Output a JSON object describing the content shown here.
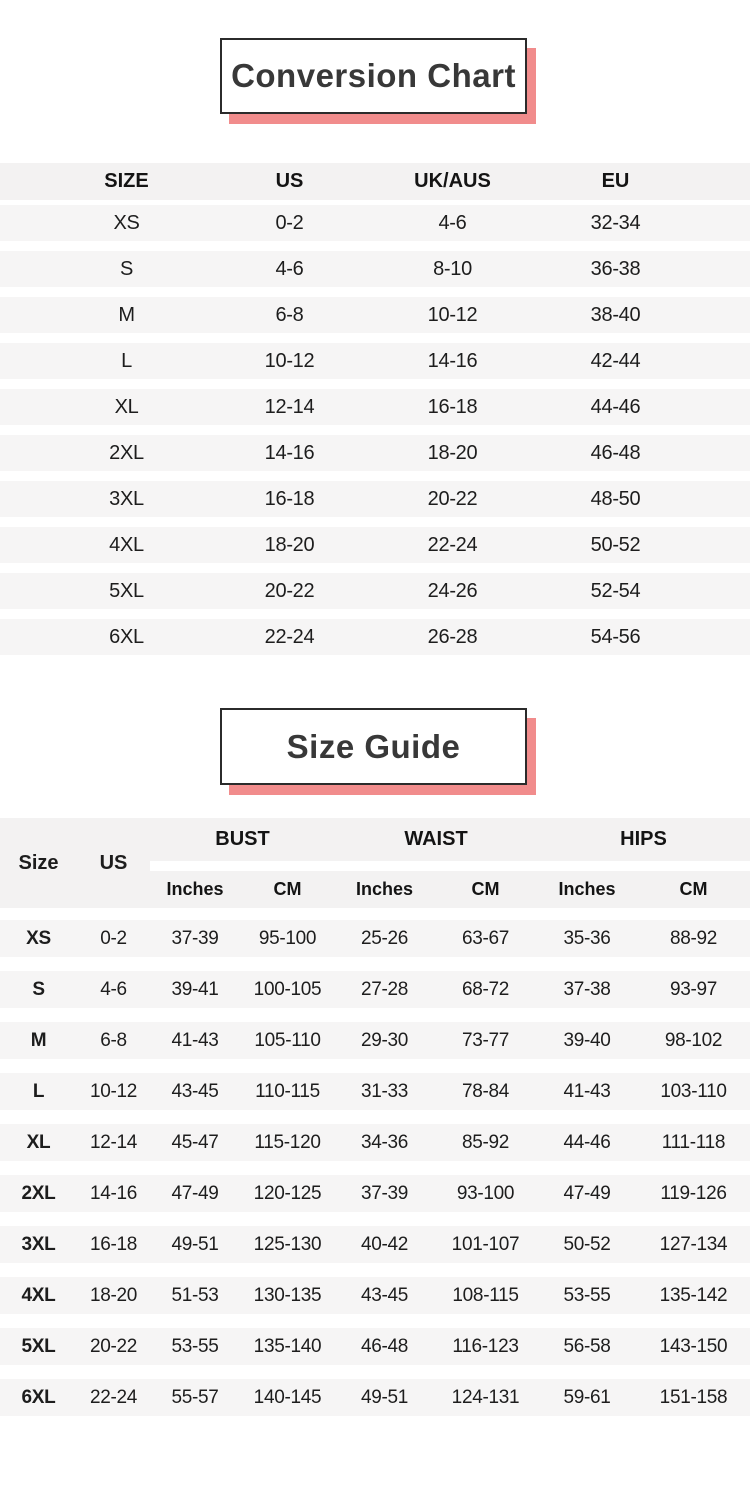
{
  "colors": {
    "accent_pink": "#f18c8c",
    "border_dark": "#2b2b2b",
    "row_gray": "#f6f5f5",
    "text_dark": "#1d1d1d"
  },
  "conversion_chart": {
    "title": "Conversion Chart",
    "headers": [
      "SIZE",
      "US",
      "UK/AUS",
      "EU"
    ],
    "rows": [
      [
        "XS",
        "0-2",
        "4-6",
        "32-34"
      ],
      [
        "S",
        "4-6",
        "8-10",
        "36-38"
      ],
      [
        "M",
        "6-8",
        "10-12",
        "38-40"
      ],
      [
        "L",
        "10-12",
        "14-16",
        "42-44"
      ],
      [
        "XL",
        "12-14",
        "16-18",
        "44-46"
      ],
      [
        "2XL",
        "14-16",
        "18-20",
        "46-48"
      ],
      [
        "3XL",
        "16-18",
        "20-22",
        "48-50"
      ],
      [
        "4XL",
        "18-20",
        "22-24",
        "50-52"
      ],
      [
        "5XL",
        "20-22",
        "24-26",
        "52-54"
      ],
      [
        "6XL",
        "22-24",
        "26-28",
        "54-56"
      ]
    ]
  },
  "size_guide": {
    "title": "Size Guide",
    "header": {
      "size_label": "Size",
      "us_label": "US",
      "groups": [
        {
          "label": "BUST"
        },
        {
          "label": "WAIST"
        },
        {
          "label": "HIPS"
        }
      ],
      "sub_labels": [
        "Inches",
        "CM",
        "Inches",
        "CM",
        "Inches",
        "CM"
      ]
    },
    "rows": [
      [
        "XS",
        "0-2",
        "37-39",
        "95-100",
        "25-26",
        "63-67",
        "35-36",
        "88-92"
      ],
      [
        "S",
        "4-6",
        "39-41",
        "100-105",
        "27-28",
        "68-72",
        "37-38",
        "93-97"
      ],
      [
        "M",
        "6-8",
        "41-43",
        "105-110",
        "29-30",
        "73-77",
        "39-40",
        "98-102"
      ],
      [
        "L",
        "10-12",
        "43-45",
        "110-115",
        "31-33",
        "78-84",
        "41-43",
        "103-110"
      ],
      [
        "XL",
        "12-14",
        "45-47",
        "115-120",
        "34-36",
        "85-92",
        "44-46",
        "111-118"
      ],
      [
        "2XL",
        "14-16",
        "47-49",
        "120-125",
        "37-39",
        "93-100",
        "47-49",
        "119-126"
      ],
      [
        "3XL",
        "16-18",
        "49-51",
        "125-130",
        "40-42",
        "101-107",
        "50-52",
        "127-134"
      ],
      [
        "4XL",
        "18-20",
        "51-53",
        "130-135",
        "43-45",
        "108-115",
        "53-55",
        "135-142"
      ],
      [
        "5XL",
        "20-22",
        "53-55",
        "135-140",
        "46-48",
        "116-123",
        "56-58",
        "143-150"
      ],
      [
        "6XL",
        "22-24",
        "55-57",
        "140-145",
        "49-51",
        "124-131",
        "59-61",
        "151-158"
      ]
    ]
  }
}
